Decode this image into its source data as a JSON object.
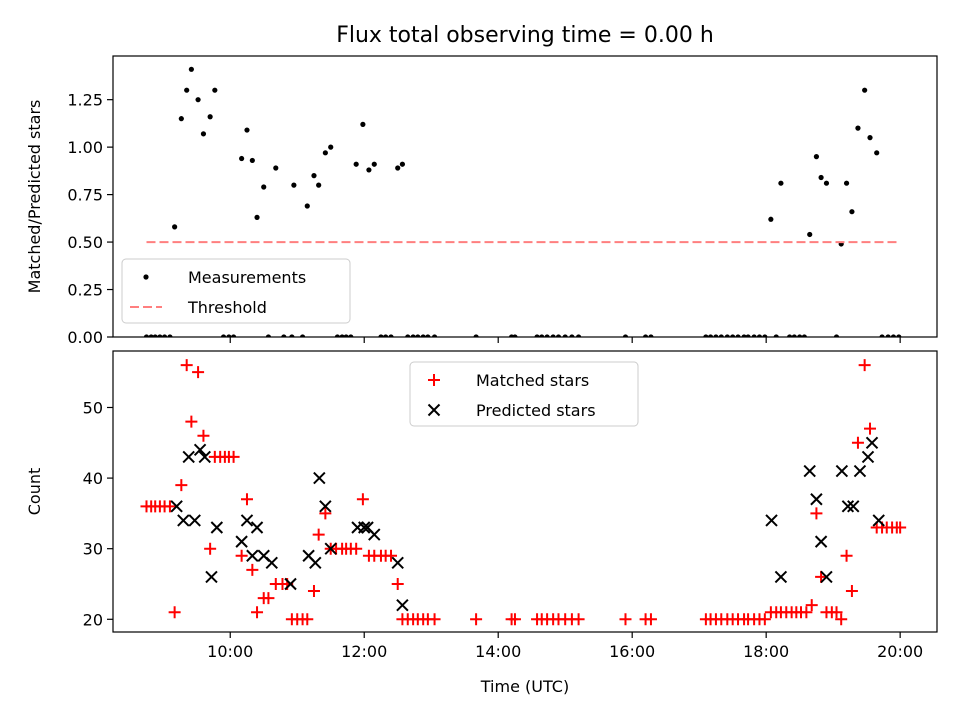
{
  "title": "Flux total observing time = 0.00 h",
  "chart_data": [
    {
      "type": "scatter",
      "ylabel": "Matched/Predicted stars",
      "xlabel": "",
      "ylim": [
        0,
        1.48
      ],
      "xlim": [
        8.25,
        20.55
      ],
      "yticks": [
        0,
        0.25,
        0.5,
        0.75,
        1.0,
        1.25
      ],
      "ytick_labels": [
        "0.00",
        "0.25",
        "0.50",
        "0.75",
        "1.00",
        "1.25"
      ],
      "legend_position": "lower-left",
      "series": [
        {
          "name": "Measurements",
          "color": "#000000",
          "marker": "dot",
          "points": [
            [
              8.75,
              0
            ],
            [
              8.82,
              0
            ],
            [
              8.88,
              0
            ],
            [
              8.95,
              0
            ],
            [
              9.02,
              0
            ],
            [
              9.1,
              0
            ],
            [
              9.17,
              0.58
            ],
            [
              9.27,
              1.15
            ],
            [
              9.35,
              1.3
            ],
            [
              9.42,
              1.41
            ],
            [
              9.52,
              1.25
            ],
            [
              9.6,
              1.07
            ],
            [
              9.7,
              1.16
            ],
            [
              9.77,
              1.3
            ],
            [
              9.9,
              0
            ],
            [
              9.98,
              0
            ],
            [
              10.05,
              0
            ],
            [
              10.17,
              0.94
            ],
            [
              10.25,
              1.09
            ],
            [
              10.33,
              0.93
            ],
            [
              10.4,
              0.63
            ],
            [
              10.5,
              0.79
            ],
            [
              10.57,
              0
            ],
            [
              10.68,
              0.89
            ],
            [
              10.8,
              0
            ],
            [
              10.92,
              0
            ],
            [
              10.95,
              0.8
            ],
            [
              11.08,
              0
            ],
            [
              11.15,
              0.69
            ],
            [
              11.25,
              0.85
            ],
            [
              11.32,
              0.8
            ],
            [
              11.42,
              0.97
            ],
            [
              11.5,
              1.0
            ],
            [
              11.6,
              0
            ],
            [
              11.67,
              0
            ],
            [
              11.73,
              0
            ],
            [
              11.8,
              0
            ],
            [
              11.88,
              0.91
            ],
            [
              11.98,
              1.12
            ],
            [
              12.07,
              0.88
            ],
            [
              12.15,
              0.91
            ],
            [
              12.25,
              0
            ],
            [
              12.32,
              0
            ],
            [
              12.4,
              0
            ],
            [
              12.5,
              0.89
            ],
            [
              12.57,
              0.91
            ],
            [
              12.65,
              0
            ],
            [
              12.73,
              0
            ],
            [
              12.8,
              0
            ],
            [
              12.88,
              0
            ],
            [
              12.95,
              0
            ],
            [
              13.05,
              0
            ],
            [
              13.67,
              0
            ],
            [
              14.2,
              0
            ],
            [
              14.25,
              0
            ],
            [
              14.58,
              0
            ],
            [
              14.65,
              0
            ],
            [
              14.73,
              0
            ],
            [
              14.82,
              0
            ],
            [
              14.9,
              0
            ],
            [
              15.0,
              0
            ],
            [
              15.1,
              0
            ],
            [
              15.2,
              0
            ],
            [
              15.9,
              0
            ],
            [
              16.2,
              0
            ],
            [
              16.28,
              0
            ],
            [
              17.1,
              0
            ],
            [
              17.17,
              0
            ],
            [
              17.25,
              0
            ],
            [
              17.33,
              0
            ],
            [
              17.42,
              0
            ],
            [
              17.5,
              0
            ],
            [
              17.58,
              0
            ],
            [
              17.67,
              0
            ],
            [
              17.73,
              0
            ],
            [
              17.82,
              0
            ],
            [
              17.9,
              0
            ],
            [
              17.98,
              0
            ],
            [
              18.07,
              0.62
            ],
            [
              18.15,
              0
            ],
            [
              18.22,
              0.81
            ],
            [
              18.35,
              0
            ],
            [
              18.42,
              0
            ],
            [
              18.5,
              0
            ],
            [
              18.57,
              0
            ],
            [
              18.65,
              0.54
            ],
            [
              18.75,
              0.95
            ],
            [
              18.82,
              0.84
            ],
            [
              18.9,
              0.81
            ],
            [
              19.05,
              0
            ],
            [
              19.12,
              0.49
            ],
            [
              19.2,
              0.81
            ],
            [
              19.28,
              0.66
            ],
            [
              19.37,
              1.1
            ],
            [
              19.47,
              1.3
            ],
            [
              19.55,
              1.05
            ],
            [
              19.65,
              0.97
            ],
            [
              19.73,
              0
            ],
            [
              19.82,
              0
            ],
            [
              19.9,
              0
            ],
            [
              19.98,
              0
            ]
          ]
        },
        {
          "name": "Threshold",
          "color": "#ff7f7f",
          "style": "dashed",
          "points": [
            [
              8.75,
              0.5
            ],
            [
              20.0,
              0.5
            ]
          ]
        }
      ]
    },
    {
      "type": "scatter",
      "ylabel": "Count",
      "xlabel": "Time (UTC)",
      "ylim": [
        18.2,
        58
      ],
      "xlim": [
        8.25,
        20.55
      ],
      "yticks": [
        20,
        30,
        40,
        50
      ],
      "ytick_labels": [
        "20",
        "30",
        "40",
        "50"
      ],
      "xticks": [
        10,
        12,
        14,
        16,
        18,
        20
      ],
      "xtick_labels": [
        "10:00",
        "12:00",
        "14:00",
        "16:00",
        "18:00",
        "20:00"
      ],
      "legend_position": "upper-center",
      "series": [
        {
          "name": "Matched stars",
          "color": "#ff0000",
          "marker": "plus",
          "points": [
            [
              8.75,
              36
            ],
            [
              8.82,
              36
            ],
            [
              8.88,
              36
            ],
            [
              8.95,
              36
            ],
            [
              9.02,
              36
            ],
            [
              9.1,
              36
            ],
            [
              9.17,
              21
            ],
            [
              9.27,
              39
            ],
            [
              9.35,
              56
            ],
            [
              9.42,
              48
            ],
            [
              9.52,
              55
            ],
            [
              9.6,
              46
            ],
            [
              9.7,
              30
            ],
            [
              9.77,
              43
            ],
            [
              9.85,
              43
            ],
            [
              9.92,
              43
            ],
            [
              9.98,
              43
            ],
            [
              10.05,
              43
            ],
            [
              10.17,
              29
            ],
            [
              10.25,
              37
            ],
            [
              10.33,
              27
            ],
            [
              10.4,
              21
            ],
            [
              10.5,
              23
            ],
            [
              10.57,
              23
            ],
            [
              10.68,
              25
            ],
            [
              10.78,
              25
            ],
            [
              10.85,
              25
            ],
            [
              10.92,
              20
            ],
            [
              11.0,
              20
            ],
            [
              11.08,
              20
            ],
            [
              11.15,
              20
            ],
            [
              11.25,
              24
            ],
            [
              11.32,
              32
            ],
            [
              11.42,
              35
            ],
            [
              11.5,
              30
            ],
            [
              11.58,
              30
            ],
            [
              11.67,
              30
            ],
            [
              11.73,
              30
            ],
            [
              11.8,
              30
            ],
            [
              11.88,
              30
            ],
            [
              11.98,
              37
            ],
            [
              12.07,
              29
            ],
            [
              12.15,
              29
            ],
            [
              12.25,
              29
            ],
            [
              12.32,
              29
            ],
            [
              12.4,
              29
            ],
            [
              12.5,
              25
            ],
            [
              12.57,
              20
            ],
            [
              12.65,
              20
            ],
            [
              12.73,
              20
            ],
            [
              12.8,
              20
            ],
            [
              12.88,
              20
            ],
            [
              12.95,
              20
            ],
            [
              13.05,
              20
            ],
            [
              13.67,
              20
            ],
            [
              14.2,
              20
            ],
            [
              14.25,
              20
            ],
            [
              14.58,
              20
            ],
            [
              14.65,
              20
            ],
            [
              14.73,
              20
            ],
            [
              14.82,
              20
            ],
            [
              14.9,
              20
            ],
            [
              15.0,
              20
            ],
            [
              15.1,
              20
            ],
            [
              15.2,
              20
            ],
            [
              15.9,
              20
            ],
            [
              16.2,
              20
            ],
            [
              16.28,
              20
            ],
            [
              17.1,
              20
            ],
            [
              17.17,
              20
            ],
            [
              17.25,
              20
            ],
            [
              17.33,
              20
            ],
            [
              17.42,
              20
            ],
            [
              17.5,
              20
            ],
            [
              17.58,
              20
            ],
            [
              17.67,
              20
            ],
            [
              17.73,
              20
            ],
            [
              17.82,
              20
            ],
            [
              17.9,
              20
            ],
            [
              17.98,
              20
            ],
            [
              18.07,
              21
            ],
            [
              18.15,
              21
            ],
            [
              18.22,
              21
            ],
            [
              18.3,
              21
            ],
            [
              18.38,
              21
            ],
            [
              18.45,
              21
            ],
            [
              18.52,
              21
            ],
            [
              18.6,
              21
            ],
            [
              18.68,
              22
            ],
            [
              18.75,
              35
            ],
            [
              18.82,
              26
            ],
            [
              18.9,
              21
            ],
            [
              18.98,
              21
            ],
            [
              19.05,
              21
            ],
            [
              19.12,
              20
            ],
            [
              19.2,
              29
            ],
            [
              19.28,
              24
            ],
            [
              19.37,
              45
            ],
            [
              19.47,
              56
            ],
            [
              19.55,
              47
            ],
            [
              19.65,
              33
            ],
            [
              19.73,
              33
            ],
            [
              19.8,
              33
            ],
            [
              19.88,
              33
            ],
            [
              19.95,
              33
            ],
            [
              20.0,
              33
            ]
          ]
        },
        {
          "name": "Predicted stars",
          "color": "#000000",
          "marker": "x",
          "points": [
            [
              9.2,
              36
            ],
            [
              9.3,
              34
            ],
            [
              9.38,
              43
            ],
            [
              9.47,
              34
            ],
            [
              9.55,
              44
            ],
            [
              9.62,
              43
            ],
            [
              9.72,
              26
            ],
            [
              9.8,
              33
            ],
            [
              10.17,
              31
            ],
            [
              10.25,
              34
            ],
            [
              10.33,
              29
            ],
            [
              10.4,
              33
            ],
            [
              10.5,
              29
            ],
            [
              10.62,
              28
            ],
            [
              10.9,
              25
            ],
            [
              11.17,
              29
            ],
            [
              11.27,
              28
            ],
            [
              11.33,
              40
            ],
            [
              11.42,
              36
            ],
            [
              11.5,
              30
            ],
            [
              11.9,
              33
            ],
            [
              12.0,
              33
            ],
            [
              12.05,
              33
            ],
            [
              12.15,
              32
            ],
            [
              12.5,
              28
            ],
            [
              12.57,
              22
            ],
            [
              18.08,
              34
            ],
            [
              18.22,
              26
            ],
            [
              18.65,
              41
            ],
            [
              18.75,
              37
            ],
            [
              18.82,
              31
            ],
            [
              18.9,
              26
            ],
            [
              19.13,
              41
            ],
            [
              19.22,
              36
            ],
            [
              19.3,
              36
            ],
            [
              19.4,
              41
            ],
            [
              19.52,
              43
            ],
            [
              19.58,
              45
            ],
            [
              19.68,
              34
            ]
          ]
        }
      ]
    }
  ]
}
